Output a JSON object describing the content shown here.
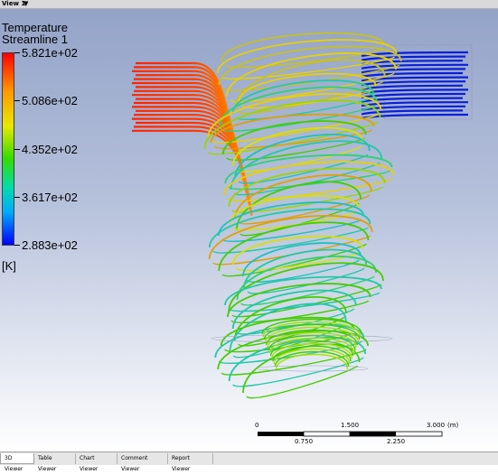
{
  "view": {
    "title": "View 1",
    "caret": "▼"
  },
  "legend": {
    "title": "Temperature",
    "subtitle": "Streamline 1",
    "ticks": [
      "5.821e+02",
      "5.086e+02",
      "4.352e+02",
      "3.617e+02",
      "2.883e+02"
    ],
    "unit": "[K]"
  },
  "scale": {
    "top": [
      "0",
      "1.500",
      "3.000",
      "(m)"
    ],
    "bottom": [
      "0.750",
      "2.250"
    ]
  },
  "tabs": [
    {
      "label": "3D Viewer",
      "active": true
    },
    {
      "label": "Table Viewer",
      "active": false
    },
    {
      "label": "Chart Viewer",
      "active": false
    },
    {
      "label": "Comment Viewer",
      "active": false
    },
    {
      "label": "Report Viewer",
      "active": false
    }
  ],
  "colors": {
    "hot": "#ff2a00",
    "warm": "#e8d000",
    "mid": "#44cc00",
    "cool": "#22c8a8",
    "cold": "#0a1fd8"
  }
}
